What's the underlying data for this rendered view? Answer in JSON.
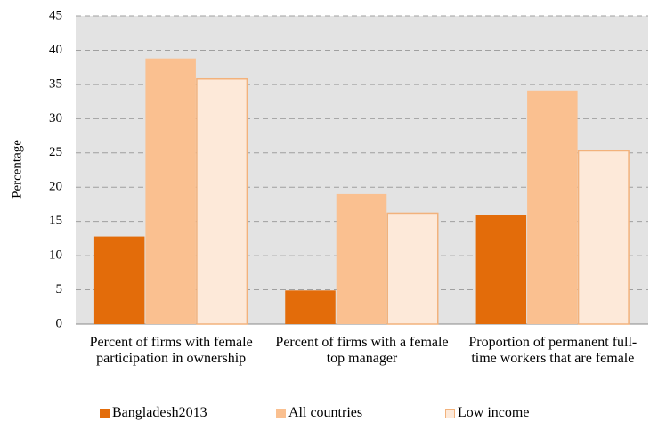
{
  "chart_data": {
    "type": "bar",
    "y_label": "Percentage",
    "categories": [
      "Percent of firms with female participation in ownership",
      "Percent of firms with a female top manager",
      "Proportion of permanent full-time workers that are female"
    ],
    "series": [
      {
        "name": "Bangladesh2013",
        "color": "#e36c0a",
        "values": [
          12.8,
          4.9,
          15.9
        ]
      },
      {
        "name": "All countries",
        "color": "#fac090",
        "values": [
          38.8,
          19,
          34.1
        ]
      },
      {
        "name": "Low income",
        "color": "#fde9d9",
        "values": [
          35.8,
          16.2,
          25.3
        ]
      }
    ],
    "ylim": [
      0,
      45
    ],
    "yticks": [
      0,
      5,
      10,
      15,
      20,
      25,
      30,
      35,
      40,
      45
    ],
    "grid": true,
    "legend": "bottom"
  }
}
